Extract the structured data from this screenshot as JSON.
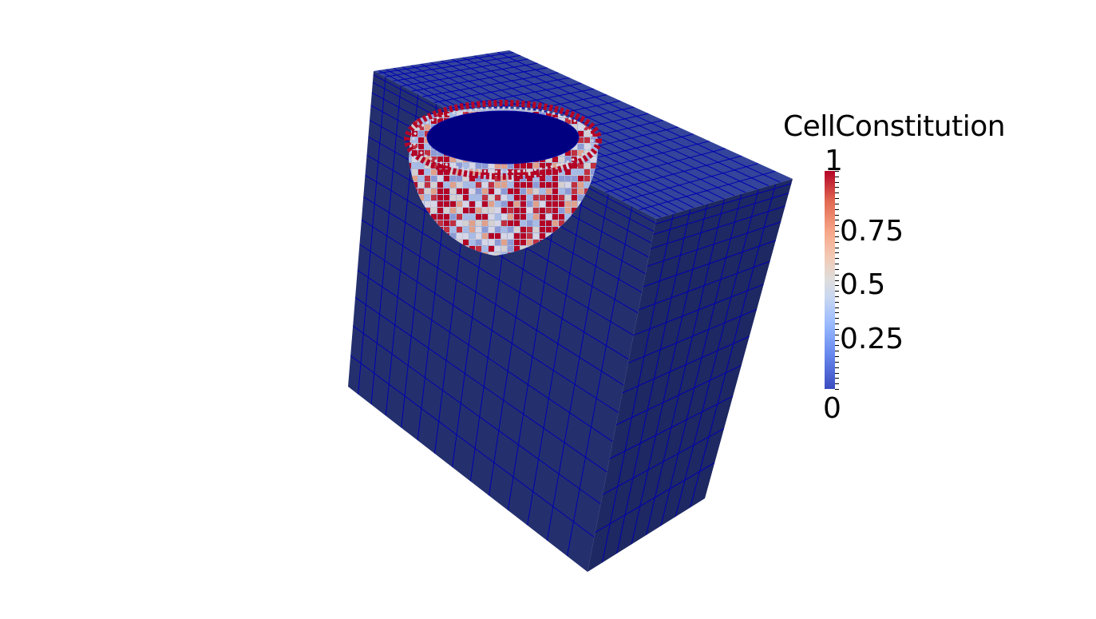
{
  "legend": {
    "title": "CellConstitution",
    "labels": {
      "max": "1",
      "q3": "0.75",
      "mid": "0.5",
      "q1": "0.25",
      "min": "0"
    },
    "range": [
      0,
      1
    ],
    "colormap": "cool-to-warm",
    "colors": [
      "#3b4cc0",
      "#dddddd",
      "#b40426"
    ]
  },
  "mesh": {
    "base_color": "#2a3b8f",
    "edge_color": "#0000a8",
    "cavity_color": "#000080"
  }
}
